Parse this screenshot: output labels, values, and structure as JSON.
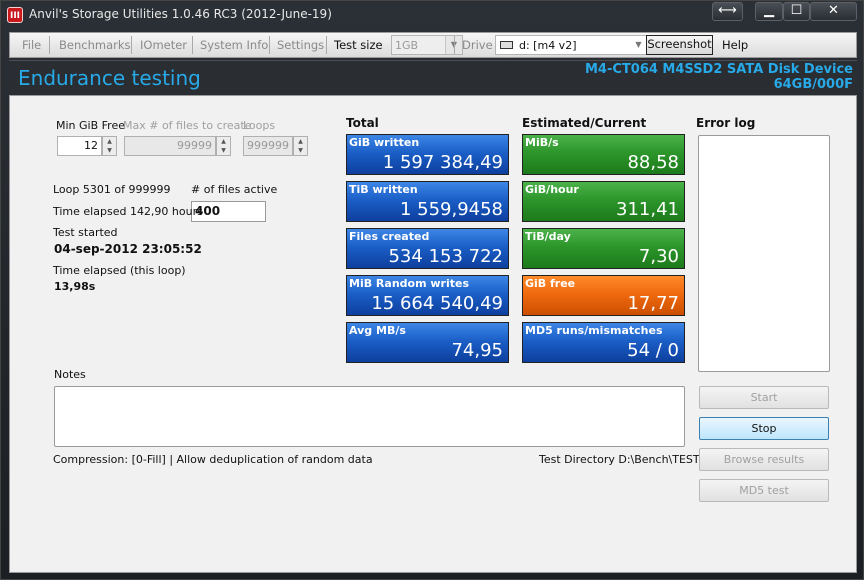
{
  "window": {
    "title": "Anvil's Storage Utilities 1.0.46 RC3 (2012-June-19)",
    "app_icon_text": "III",
    "swap_glyph": "⟷",
    "min_glyph": "▁",
    "max_glyph": "☐",
    "close_glyph": "✕"
  },
  "menu": {
    "file": "File",
    "benchmarks": "Benchmarks",
    "iometer": "IOmeter",
    "system_info": "System Info",
    "settings": "Settings",
    "test_size_label": "Test size",
    "test_size_value": "1GB",
    "drive_label": "Drive",
    "drive_value": "d: [m4 v2]",
    "screenshot": "Screenshot",
    "help": "Help"
  },
  "header": {
    "title": "Endurance testing",
    "device_name": "M4-CT064 M4SSD2 SATA Disk Device",
    "device_size": "64GB/000F"
  },
  "params": {
    "min_gib_free_label": "Min GiB Free",
    "min_gib_free_value": "12",
    "max_files_label": "Max # of files to create",
    "max_files_value": "99999",
    "loops_label": "Loops",
    "loops_value": "999999"
  },
  "status": {
    "loop": "Loop 5301 of 999999",
    "files_active_label": "# of files active",
    "files_active_value": "400",
    "time_elapsed": "Time elapsed 142,90 hours",
    "test_started_label": "Test started",
    "test_started_value": "04-sep-2012 23:05:52",
    "time_elapsed_loop_label": "Time elapsed (this loop)",
    "time_elapsed_loop_value": "13,98s"
  },
  "totals": {
    "heading": "Total",
    "tiles": [
      {
        "label": "GiB written",
        "value": "1 597 384,49",
        "color": "#1b5fc7"
      },
      {
        "label": "TiB written",
        "value": "1 559,9458",
        "color": "#1b5fc7"
      },
      {
        "label": "Files created",
        "value": "534 153 722",
        "color": "#1b5fc7"
      },
      {
        "label": "MiB Random writes",
        "value": "15 664 540,49",
        "color": "#1b5fc7"
      },
      {
        "label": "Avg MB/s",
        "value": "74,95",
        "color": "#1b5fc7"
      }
    ]
  },
  "estimated": {
    "heading": "Estimated/Current",
    "tiles": [
      {
        "label": "MiB/s",
        "value": "88,58",
        "color": "#2d962b"
      },
      {
        "label": "GiB/hour",
        "value": "311,41",
        "color": "#2d962b"
      },
      {
        "label": "TiB/day",
        "value": "7,30",
        "color": "#2d962b"
      },
      {
        "label": "GiB free",
        "value": "17,77",
        "color": "#f06a0e"
      },
      {
        "label": "MD5 runs/mismatches",
        "value": "54 / 0",
        "color": "#1b5fc7"
      }
    ]
  },
  "error_log": {
    "heading": "Error log"
  },
  "notes": {
    "label": "Notes"
  },
  "footer": {
    "compression": "Compression: [0-Fill] | Allow deduplication of random data",
    "test_directory": "Test Directory D:\\Bench\\TEST"
  },
  "buttons": {
    "start": "Start",
    "stop": "Stop",
    "browse_results": "Browse results",
    "md5_test": "MD5 test"
  }
}
